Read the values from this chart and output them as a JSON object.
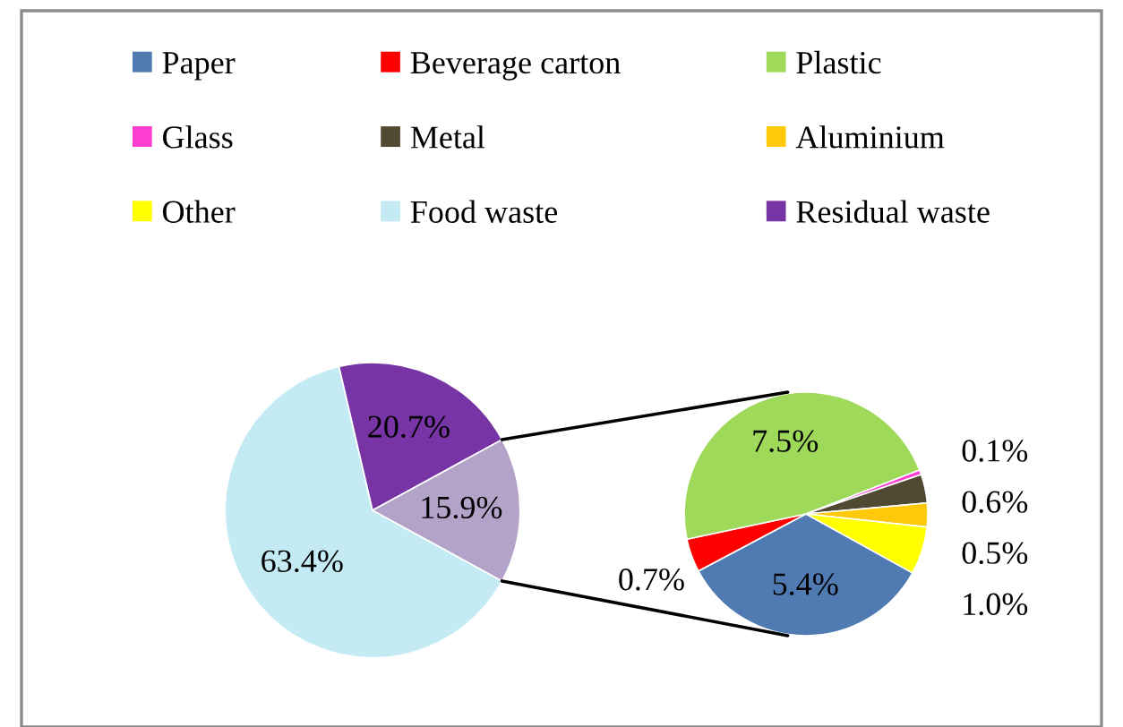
{
  "chart_data": [
    {
      "type": "pie",
      "categories": [
        "Food waste",
        "Residual waste",
        null
      ],
      "values": [
        63.4,
        20.7,
        15.9
      ],
      "colors": [
        "#c4ebf4",
        "#7634a4",
        "#b4a3c8"
      ],
      "value_labels": [
        "63.4%",
        "20.7%",
        "15.9%"
      ],
      "legend": "top"
    },
    {
      "type": "pie",
      "categories": [
        "Paper",
        "Beverage carton",
        "Plastic",
        "Glass",
        "Metal",
        "Aluminium",
        "Other"
      ],
      "values": [
        5.4,
        0.7,
        7.5,
        0.1,
        0.6,
        0.5,
        1.0
      ],
      "colors": [
        "#4f7bb2",
        "#ff0000",
        "#9ed95a",
        "#ff3dd1",
        "#4f4a31",
        "#ffc90a",
        "#ffff00"
      ],
      "value_labels": [
        "5.4%",
        "0.7%",
        "7.5%",
        "0.1%",
        "0.6%",
        "0.5%",
        "1.0%"
      ],
      "legend": "top"
    }
  ]
}
